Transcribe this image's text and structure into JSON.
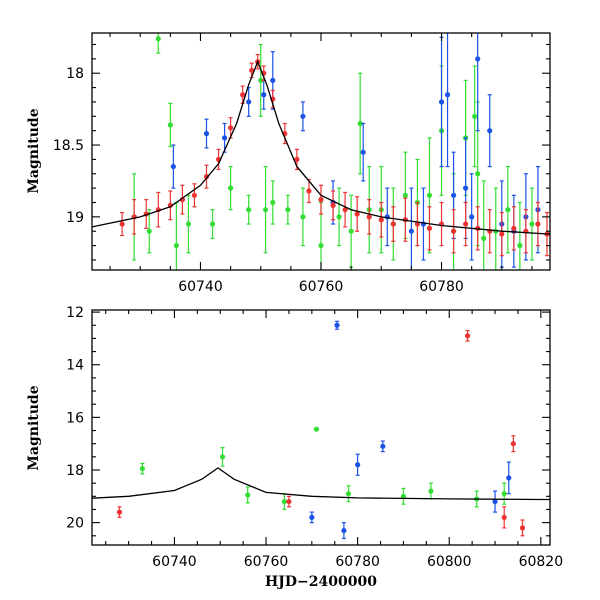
{
  "chart_data": [
    {
      "type": "scatter",
      "title": "",
      "xlabel": "",
      "ylabel": "Magnitude",
      "xlim": [
        60722,
        60798
      ],
      "ylim": [
        19.37,
        17.72
      ],
      "y_inverted": true,
      "xticks": [
        60740,
        60760,
        60780
      ],
      "yticks": [
        18,
        18.5,
        19
      ],
      "ytick_labels": [
        "18",
        "18.5",
        "19"
      ],
      "grid": false,
      "legend": "none",
      "colors": {
        "blue": "#1a53e6",
        "green": "#33dd33",
        "red": "#ee3333",
        "model": "#000000"
      },
      "model_curve": {
        "x": [
          60722,
          60730,
          60735,
          60740,
          60743,
          60746,
          60748,
          60749.5,
          60751,
          60753,
          60756,
          60760,
          60765,
          60770,
          60780,
          60790,
          60798
        ],
        "y": [
          19.07,
          19.0,
          18.93,
          18.78,
          18.63,
          18.35,
          18.08,
          17.92,
          18.08,
          18.35,
          18.65,
          18.85,
          18.95,
          19.0,
          19.06,
          19.1,
          19.12
        ]
      },
      "series": [
        {
          "color": "green",
          "x": [
            60729,
            60731.5,
            60733,
            60735,
            60736,
            60738,
            60742,
            60745,
            60748,
            60750,
            60750.8,
            60752,
            60754.5,
            60757,
            60760,
            60763,
            60765,
            60766.5,
            60768,
            60770,
            60772,
            60774,
            60776,
            60778,
            60780,
            60782,
            60784,
            60785.5,
            60786,
            60787,
            60789,
            60791,
            60793,
            60795
          ],
          "y": [
            19.0,
            19.1,
            17.76,
            18.36,
            19.2,
            19.05,
            19.05,
            18.8,
            18.95,
            18.05,
            18.95,
            18.9,
            18.95,
            19.0,
            19.2,
            19.0,
            19.1,
            18.35,
            18.95,
            18.95,
            19.05,
            18.85,
            18.9,
            18.85,
            18.4,
            19.1,
            18.45,
            18.3,
            18.7,
            19.15,
            19.1,
            18.95,
            19.2,
            19.05
          ],
          "err": [
            0.3,
            0.15,
            0.1,
            0.15,
            0.3,
            0.2,
            0.1,
            0.15,
            0.1,
            0.25,
            0.3,
            0.15,
            0.1,
            0.2,
            0.3,
            0.2,
            0.25,
            0.35,
            0.3,
            0.3,
            0.25,
            0.3,
            0.3,
            0.4,
            0.45,
            0.4,
            0.4,
            0.35,
            0.5,
            0.4,
            0.3,
            0.3,
            0.3,
            0.25
          ]
        },
        {
          "color": "blue",
          "x": [
            60735.5,
            60741,
            60744,
            60748,
            60750.5,
            60752,
            60757,
            60762,
            60767,
            60771,
            60775,
            60777,
            60780,
            60781,
            60782,
            60784,
            60785,
            60786,
            60788,
            60790,
            60792,
            60794,
            60796
          ],
          "y": [
            18.65,
            18.42,
            18.45,
            18.2,
            18.15,
            18.05,
            18.3,
            18.9,
            18.55,
            19.0,
            19.1,
            19.05,
            18.2,
            18.15,
            18.85,
            18.8,
            19.0,
            17.9,
            18.4,
            19.05,
            19.1,
            19.0,
            18.95
          ],
          "err": [
            0.15,
            0.1,
            0.1,
            0.1,
            0.1,
            0.2,
            0.1,
            0.15,
            0.2,
            0.2,
            0.3,
            0.25,
            0.45,
            0.5,
            0.3,
            0.35,
            0.3,
            0.5,
            0.25,
            0.3,
            0.25,
            0.3,
            0.3
          ]
        },
        {
          "color": "red",
          "x": [
            60727,
            60729,
            60731,
            60733,
            60735,
            60737,
            60739,
            60741,
            60743,
            60745,
            60747,
            60748.5,
            60749.5,
            60750.5,
            60752,
            60754,
            60756,
            60758,
            60760,
            60762,
            60764,
            60766,
            60768,
            60770,
            60772,
            60774,
            60776,
            60778,
            60780,
            60782,
            60784,
            60786,
            60788,
            60790,
            60792,
            60794,
            60796,
            60797.5
          ],
          "y": [
            19.05,
            19.0,
            18.98,
            18.95,
            18.92,
            18.88,
            18.85,
            18.72,
            18.6,
            18.38,
            18.15,
            17.98,
            17.92,
            18.0,
            18.18,
            18.42,
            18.6,
            18.82,
            18.88,
            18.92,
            18.95,
            18.98,
            19.0,
            19.02,
            19.05,
            19.02,
            19.05,
            19.08,
            19.05,
            19.1,
            19.05,
            19.08,
            19.1,
            19.12,
            19.08,
            19.1,
            19.05,
            19.12
          ],
          "err": [
            0.08,
            0.12,
            0.1,
            0.12,
            0.1,
            0.1,
            0.08,
            0.08,
            0.07,
            0.07,
            0.06,
            0.05,
            0.05,
            0.05,
            0.06,
            0.07,
            0.07,
            0.08,
            0.1,
            0.1,
            0.12,
            0.12,
            0.12,
            0.12,
            0.12,
            0.15,
            0.15,
            0.15,
            0.15,
            0.15,
            0.15,
            0.15,
            0.15,
            0.15,
            0.15,
            0.15,
            0.15,
            0.15
          ]
        }
      ]
    },
    {
      "type": "scatter",
      "title": "",
      "xlabel": "HJD−2400000",
      "ylabel": "Magnitude",
      "xlim": [
        60722,
        60822
      ],
      "ylim": [
        20.85,
        11.92
      ],
      "y_inverted": true,
      "xticks": [
        60740,
        60760,
        60780,
        60800,
        60820
      ],
      "yticks": [
        12,
        14,
        16,
        18,
        20
      ],
      "ytick_labels": [
        "12",
        "14",
        "16",
        "18",
        "20"
      ],
      "grid": false,
      "legend": "none",
      "colors": {
        "blue": "#1a53e6",
        "green": "#33dd33",
        "red": "#ee3333",
        "model": "#000000"
      },
      "model_curve": {
        "x": [
          60722,
          60730,
          60740,
          60746,
          60749.5,
          60753,
          60760,
          60770,
          60780,
          60800,
          60820,
          60822
        ],
        "y": [
          19.07,
          19.0,
          18.78,
          18.35,
          17.92,
          18.35,
          18.85,
          19.0,
          19.06,
          19.1,
          19.12,
          19.12
        ]
      },
      "series": [
        {
          "color": "green",
          "x": [
            60733,
            60750.5,
            60756,
            60764,
            60771,
            60778,
            60790,
            60796,
            60806,
            60812
          ],
          "y": [
            17.95,
            17.5,
            18.95,
            19.2,
            16.45,
            18.9,
            19.0,
            18.8,
            19.1,
            18.9
          ],
          "err": [
            0.2,
            0.35,
            0.3,
            0.3,
            0,
            0.3,
            0.3,
            0.3,
            0.3,
            0.4
          ]
        },
        {
          "color": "blue",
          "x": [
            60770,
            60775.5,
            60777,
            60780,
            60785.5,
            60810,
            60813
          ],
          "y": [
            19.8,
            12.5,
            20.3,
            17.8,
            17.1,
            19.2,
            18.3
          ],
          "err": [
            0.2,
            0.15,
            0.3,
            0.4,
            0.2,
            0.4,
            0.6
          ]
        },
        {
          "color": "red",
          "x": [
            60728,
            60765,
            60804,
            60812,
            60814,
            60816
          ],
          "y": [
            19.6,
            19.2,
            12.9,
            19.8,
            17.0,
            20.2
          ],
          "err": [
            0.2,
            0.2,
            0.2,
            0.4,
            0.3,
            0.3
          ]
        }
      ]
    }
  ]
}
